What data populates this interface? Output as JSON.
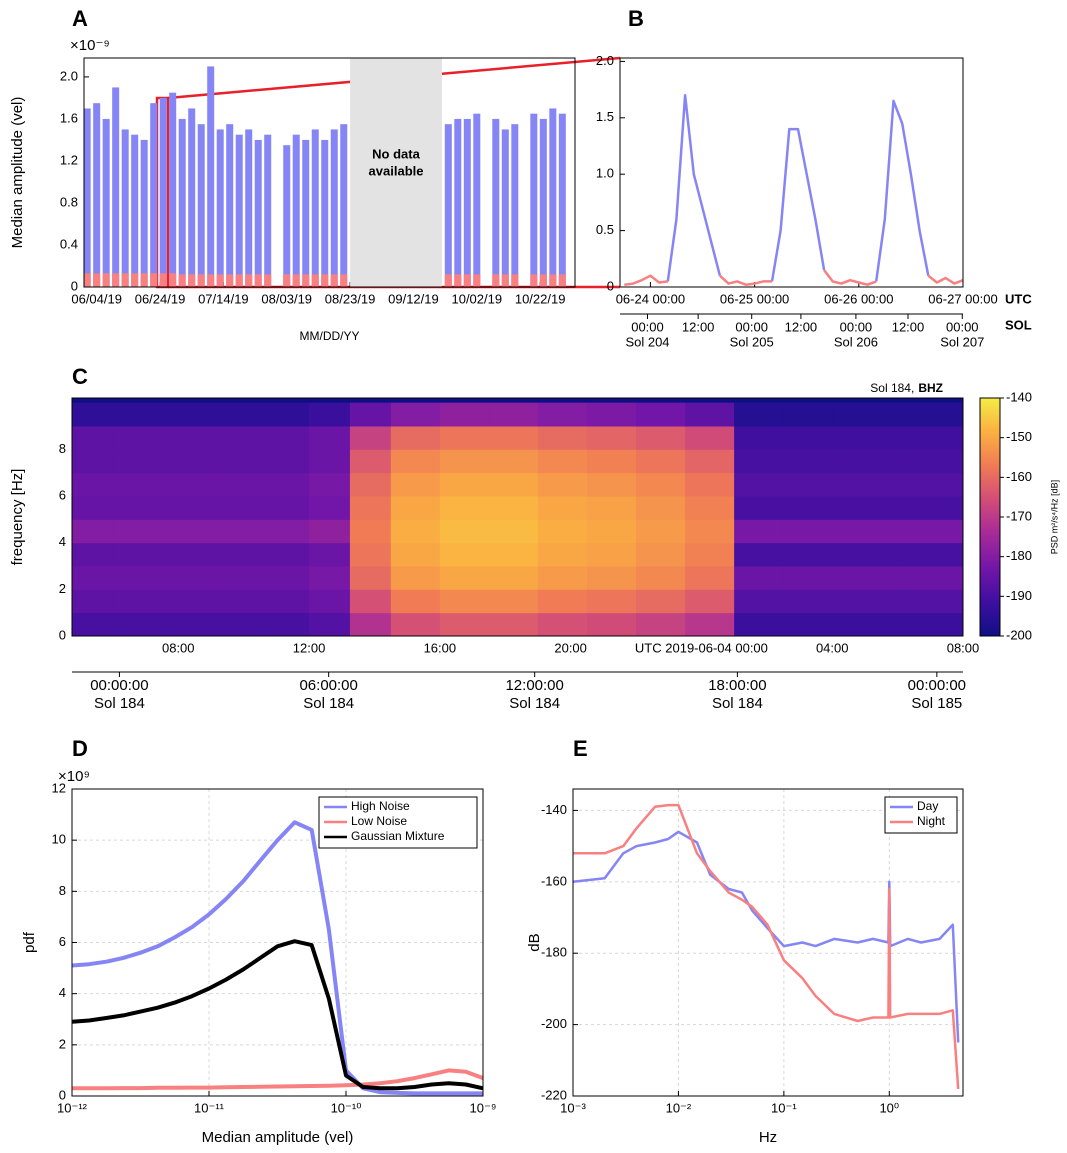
{
  "chart_data": [
    {
      "type": "bar",
      "panel": "A",
      "ylabel": "Median amplitude (vel)",
      "xlabel": "MM/DD/YY",
      "exponent": "×10⁻⁹",
      "annotation": [
        "No data",
        "available"
      ],
      "nodata_span": [
        "08/23/19",
        "09/21/19"
      ],
      "x": [
        "06/01/19",
        "06/04/19",
        "06/07/19",
        "06/10/19",
        "06/13/19",
        "06/16/19",
        "06/19/19",
        "06/22/19",
        "06/25/19",
        "06/28/19",
        "07/01/19",
        "07/04/19",
        "07/07/19",
        "07/10/19",
        "07/13/19",
        "07/16/19",
        "07/19/19",
        "07/22/19",
        "07/25/19",
        "07/28/19",
        "07/31/19",
        "08/03/19",
        "08/06/19",
        "08/09/19",
        "08/12/19",
        "08/15/19",
        "08/18/19",
        "08/21/19",
        "08/24/19",
        "08/27/19",
        "08/30/19",
        "09/02/19",
        "09/05/19",
        "09/08/19",
        "09/11/19",
        "09/14/19",
        "09/17/19",
        "09/20/19",
        "09/23/19",
        "09/26/19",
        "09/29/19",
        "10/02/19",
        "10/05/19",
        "10/08/19",
        "10/11/19",
        "10/14/19",
        "10/17/19",
        "10/20/19",
        "10/23/19",
        "10/26/19",
        "10/29/19"
      ],
      "series": [
        {
          "color": "#8585f5",
          "values": [
            1.7,
            1.75,
            1.6,
            1.9,
            1.5,
            1.45,
            1.4,
            1.75,
            1.8,
            1.85,
            1.6,
            1.7,
            1.55,
            2.1,
            1.5,
            1.55,
            1.45,
            1.5,
            1.4,
            1.45,
            null,
            1.35,
            1.45,
            1.4,
            1.5,
            1.4,
            1.5,
            1.55,
            null,
            null,
            null,
            null,
            null,
            null,
            null,
            null,
            null,
            null,
            1.55,
            1.6,
            1.6,
            1.65,
            null,
            1.6,
            1.5,
            1.55,
            null,
            1.65,
            1.6,
            1.7,
            1.65
          ]
        },
        {
          "color": "#f88080",
          "values": [
            0.13,
            0.13,
            0.13,
            0.13,
            0.13,
            0.13,
            0.13,
            0.13,
            0.13,
            0.13,
            0.12,
            0.12,
            0.12,
            0.12,
            0.12,
            0.12,
            0.12,
            0.12,
            0.12,
            0.12,
            null,
            0.12,
            0.12,
            0.12,
            0.12,
            0.12,
            0.12,
            0.12,
            null,
            null,
            null,
            null,
            null,
            null,
            null,
            null,
            null,
            null,
            0.12,
            0.12,
            0.12,
            0.12,
            null,
            0.12,
            0.12,
            0.12,
            null,
            0.12,
            0.12,
            0.12,
            0.12
          ]
        }
      ],
      "xlim": [
        "05/31/19",
        "11/02/19"
      ],
      "xticks": [
        "06/04/19",
        "06/24/19",
        "07/14/19",
        "08/03/19",
        "08/23/19",
        "09/12/19",
        "10/02/19",
        "10/22/19"
      ],
      "ylim": [
        0,
        2.18
      ],
      "yticks": [
        0,
        0.4,
        0.8,
        1.2,
        1.6,
        {
          "value": 2,
          "label": "2.0"
        }
      ],
      "grid": false
    },
    {
      "type": "line",
      "panel": "B",
      "x_axis_name": "UTC",
      "sol_axis_name": "SOL",
      "x": [
        "06-23 18:00",
        "06-23 20:00",
        "06-23 22:00",
        "06-24 00:00",
        "06-24 02:00",
        "06-24 04:00",
        "06-24 06:00",
        "06-24 08:00",
        "06-24 10:00",
        "06-24 12:00",
        "06-24 14:00",
        "06-24 16:00",
        "06-24 18:00",
        "06-24 20:00",
        "06-24 22:00",
        "06-25 00:00",
        "06-25 02:00",
        "06-25 04:00",
        "06-25 06:00",
        "06-25 08:00",
        "06-25 10:00",
        "06-25 12:00",
        "06-25 14:00",
        "06-25 16:00",
        "06-25 18:00",
        "06-25 20:00",
        "06-25 22:00",
        "06-26 00:00",
        "06-26 02:00",
        "06-26 04:00",
        "06-26 06:00",
        "06-26 08:00",
        "06-26 10:00",
        "06-26 12:00",
        "06-26 14:00",
        "06-26 16:00",
        "06-26 18:00",
        "06-26 20:00",
        "06-26 22:00",
        "06-27 00:00"
      ],
      "series": [
        {
          "color": "#8585f5",
          "values": [
            null,
            null,
            null,
            null,
            null,
            0.05,
            0.6,
            1.7,
            1.0,
            0.7,
            0.4,
            0.1,
            null,
            null,
            null,
            null,
            null,
            0.05,
            0.5,
            1.4,
            1.4,
            1.0,
            0.6,
            0.15,
            null,
            null,
            null,
            null,
            null,
            0.05,
            0.6,
            1.65,
            1.45,
            1.0,
            0.5,
            0.1,
            null,
            null,
            null,
            null
          ]
        },
        {
          "color": "#f88080",
          "values": [
            0.02,
            0.03,
            0.06,
            0.1,
            0.04,
            0.05,
            null,
            null,
            null,
            null,
            null,
            0.1,
            0.03,
            0.05,
            0.02,
            0.03,
            0.05,
            0.05,
            null,
            null,
            null,
            null,
            null,
            0.15,
            0.05,
            0.03,
            0.06,
            0.04,
            0.02,
            0.05,
            null,
            null,
            null,
            null,
            null,
            0.1,
            0.04,
            0.08,
            0.03,
            0.06
          ]
        }
      ],
      "xlim": [
        "06-23 17:00",
        "06-27 00:00"
      ],
      "xticks": [
        "06-24 00:00",
        "06-25 00:00",
        "06-26 00:00",
        "06-27 00:00"
      ],
      "sol_ticks": [
        {
          "value": "06-23 23:20",
          "label": "00:00",
          "sol": "Sol 204"
        },
        {
          "value": "06-24 11:00",
          "label": "12:00"
        },
        {
          "value": "06-24 23:20",
          "label": "00:00",
          "sol": "Sol 205"
        },
        {
          "value": "06-25 10:40",
          "label": "12:00"
        },
        {
          "value": "06-25 23:20",
          "label": "00:00",
          "sol": "Sol 206"
        },
        {
          "value": "06-26 11:20",
          "label": "12:00"
        },
        {
          "value": "06-26 23:50",
          "label": "00:00",
          "sol": "Sol 207"
        }
      ],
      "ylim": [
        0,
        2.03
      ],
      "yticks": [
        0,
        0.5,
        {
          "value": 1,
          "label": "1.0"
        },
        1.5,
        {
          "value": 2,
          "label": "2.0"
        }
      ],
      "grid": false
    },
    {
      "type": "heatmap",
      "panel": "C",
      "ylabel": "frequency [Hz]",
      "annotation": "Sol 184,",
      "channel": "BHZ",
      "colorbar_label": "PSD m²/s⁴/Hz [dB]",
      "colormap": [
        "#0f0f85",
        "#3e0fa0",
        "#7216a8",
        "#a62a98",
        "#d24c78",
        "#f07a55",
        "#fbb042",
        "#f5ec45"
      ],
      "zlim": [
        -200,
        -140
      ],
      "zticks": [
        -200,
        -190,
        -180,
        -170,
        -160,
        -150,
        -140
      ],
      "xbins": [
        4.75,
        6,
        7.5,
        9,
        10.5,
        12,
        13.25,
        14.5,
        16,
        17.5,
        19,
        20.5,
        22,
        23.5,
        25,
        26.5,
        28,
        30,
        32
      ],
      "ybins": [
        0,
        1,
        2,
        3,
        4,
        5,
        6,
        7,
        8,
        9,
        10
      ],
      "z": [
        [
          -190,
          -190,
          -190,
          -190,
          -190,
          -188,
          -172,
          -165,
          -163,
          -163,
          -165,
          -166,
          -168,
          -171,
          -192,
          -192,
          -192,
          -192
        ],
        [
          -186,
          -186,
          -186,
          -186,
          -186,
          -184,
          -165,
          -157,
          -155,
          -155,
          -157,
          -158,
          -160,
          -163,
          -188,
          -188,
          -188,
          -188
        ],
        [
          -184,
          -184,
          -184,
          -184,
          -184,
          -182,
          -160,
          -152,
          -150,
          -150,
          -152,
          -153,
          -155,
          -158,
          -184,
          -184,
          -184,
          -184
        ],
        [
          -186,
          -186,
          -186,
          -186,
          -186,
          -184,
          -158,
          -150,
          -148,
          -148,
          -150,
          -151,
          -153,
          -156,
          -190,
          -190,
          -190,
          -190
        ],
        [
          -180,
          -180,
          -180,
          -180,
          -180,
          -178,
          -157,
          -149,
          -147,
          -147,
          -149,
          -150,
          -152,
          -155,
          -182,
          -182,
          -182,
          -182
        ],
        [
          -185,
          -185,
          -185,
          -185,
          -185,
          -183,
          -158,
          -150,
          -148,
          -148,
          -150,
          -151,
          -153,
          -156,
          -190,
          -190,
          -190,
          -190
        ],
        [
          -184,
          -184,
          -184,
          -184,
          -184,
          -182,
          -160,
          -152,
          -150,
          -150,
          -152,
          -153,
          -155,
          -158,
          -188,
          -188,
          -188,
          -188
        ],
        [
          -186,
          -186,
          -186,
          -186,
          -186,
          -184,
          -163,
          -155,
          -153,
          -153,
          -155,
          -156,
          -158,
          -161,
          -190,
          -190,
          -190,
          -190
        ],
        [
          -186,
          -186,
          -186,
          -186,
          -186,
          -184,
          -168,
          -160,
          -158,
          -158,
          -160,
          -161,
          -163,
          -166,
          -191,
          -191,
          -191,
          -191
        ],
        [
          -194,
          -194,
          -194,
          -194,
          -194,
          -192,
          -185,
          -180,
          -178,
          -178,
          -180,
          -181,
          -183,
          -186,
          -196,
          -196,
          -196,
          -196
        ]
      ],
      "xlim": [
        4.75,
        32
      ],
      "xticks": [
        {
          "value": 8,
          "label": "08:00"
        },
        {
          "value": 12,
          "label": "12:00"
        },
        {
          "value": 16,
          "label": "16:00"
        },
        {
          "value": 20,
          "label": "20:00"
        },
        {
          "value": 24,
          "label": "UTC 2019-06-04 00:00"
        },
        {
          "value": 28,
          "label": "04:00"
        },
        {
          "value": 32,
          "label": "08:00"
        }
      ],
      "sol_ticks": [
        {
          "value": 6.2,
          "label": "00:00:00",
          "sol": "Sol 184"
        },
        {
          "value": 12.6,
          "label": "06:00:00",
          "sol": "Sol 184"
        },
        {
          "value": 18.9,
          "label": "12:00:00",
          "sol": "Sol 184"
        },
        {
          "value": 25.1,
          "label": "18:00:00",
          "sol": "Sol 184"
        },
        {
          "value": 31.2,
          "label": "00:00:00",
          "sol": "Sol 185"
        }
      ],
      "ylim": [
        0,
        10.2
      ],
      "yticks": [
        0,
        2,
        4,
        6,
        8
      ],
      "grid": false
    },
    {
      "type": "line",
      "panel": "D",
      "xlabel": "Median amplitude (vel)",
      "ylabel": "pdf",
      "exponent": "×10⁹",
      "xlog": true,
      "legend": "northeast",
      "x": [
        1e-12,
        1.33e-12,
        1.78e-12,
        2.37e-12,
        3.16e-12,
        4.22e-12,
        5.62e-12,
        7.5e-12,
        1e-11,
        1.33e-11,
        1.78e-11,
        2.37e-11,
        3.16e-11,
        4.22e-11,
        5.62e-11,
        7.5e-11,
        1e-10,
        1.33e-10,
        1.78e-10,
        2.37e-10,
        3.16e-10,
        4.22e-10,
        5.62e-10,
        7.5e-10,
        1e-09
      ],
      "series": [
        {
          "name": "High Noise",
          "color": "#8585f5",
          "values": [
            5.1,
            5.15,
            5.25,
            5.4,
            5.6,
            5.85,
            6.2,
            6.6,
            7.1,
            7.7,
            8.4,
            9.2,
            10.0,
            10.7,
            10.4,
            6.5,
            1.0,
            0.3,
            0.15,
            0.12,
            0.1,
            0.1,
            0.1,
            0.1,
            0.1
          ]
        },
        {
          "name": "Low Noise",
          "color": "#f88080",
          "values": [
            0.3,
            0.3,
            0.3,
            0.31,
            0.31,
            0.32,
            0.32,
            0.33,
            0.33,
            0.34,
            0.35,
            0.36,
            0.37,
            0.38,
            0.39,
            0.4,
            0.42,
            0.45,
            0.5,
            0.58,
            0.7,
            0.85,
            1.0,
            0.95,
            0.7
          ]
        },
        {
          "name": "Gaussian Mixture",
          "color": "#000000",
          "values": [
            2.9,
            2.95,
            3.05,
            3.15,
            3.3,
            3.45,
            3.65,
            3.9,
            4.2,
            4.55,
            4.95,
            5.4,
            5.85,
            6.05,
            5.9,
            3.8,
            0.8,
            0.35,
            0.3,
            0.3,
            0.35,
            0.45,
            0.5,
            0.45,
            0.3
          ]
        }
      ],
      "xlim": [
        1e-12,
        1e-09
      ],
      "xticks": [
        {
          "value": 1e-12,
          "label": "10⁻¹²"
        },
        {
          "value": 1e-11,
          "label": "10⁻¹¹"
        },
        {
          "value": 1e-10,
          "label": "10⁻¹⁰"
        },
        {
          "value": 1e-09,
          "label": "10⁻⁹"
        }
      ],
      "ylim": [
        0,
        12
      ],
      "yticks": [
        0,
        2,
        4,
        6,
        8,
        10,
        12
      ],
      "grid": true
    },
    {
      "type": "line",
      "panel": "E",
      "xlabel": "Hz",
      "ylabel": "dB",
      "xlog": true,
      "legend": "northeast",
      "x": [
        0.001,
        0.002,
        0.003,
        0.004,
        0.006,
        0.008,
        0.01,
        0.015,
        0.02,
        0.03,
        0.04,
        0.05,
        0.07,
        0.1,
        0.15,
        0.2,
        0.3,
        0.5,
        0.7,
        0.98,
        1,
        1.02,
        1.5,
        2,
        3,
        4,
        4.5
      ],
      "series": [
        {
          "name": "Day",
          "color": "#8585f5",
          "values": [
            -160,
            -159,
            -152,
            -150,
            -149,
            -148,
            -146,
            -149,
            -158,
            -162,
            -163,
            -168,
            -173,
            -178,
            -177,
            -178,
            -176,
            -177,
            -176,
            -177,
            -160,
            -178,
            -176,
            -177,
            -176,
            -172,
            -205
          ]
        },
        {
          "name": "Night",
          "color": "#f88080",
          "values": [
            -152,
            -152,
            -150,
            -145,
            -139,
            -138.5,
            -138.5,
            -152,
            -157,
            -163,
            -165,
            -167,
            -172,
            -182,
            -187,
            -192,
            -197,
            -199,
            -198,
            -198,
            -162,
            -198,
            -197,
            -197,
            -197,
            -196,
            -218
          ]
        }
      ],
      "xlim": [
        0.001,
        5
      ],
      "xticks": [
        {
          "value": 0.001,
          "label": "10⁻³"
        },
        {
          "value": 0.01,
          "label": "10⁻²"
        },
        {
          "value": 0.1,
          "label": "10⁻¹"
        },
        {
          "value": 1,
          "label": "10⁰"
        }
      ],
      "ylim": [
        -220,
        -134
      ],
      "yticks": [
        -220,
        -200,
        -180,
        -160,
        -140
      ],
      "grid": true
    }
  ]
}
